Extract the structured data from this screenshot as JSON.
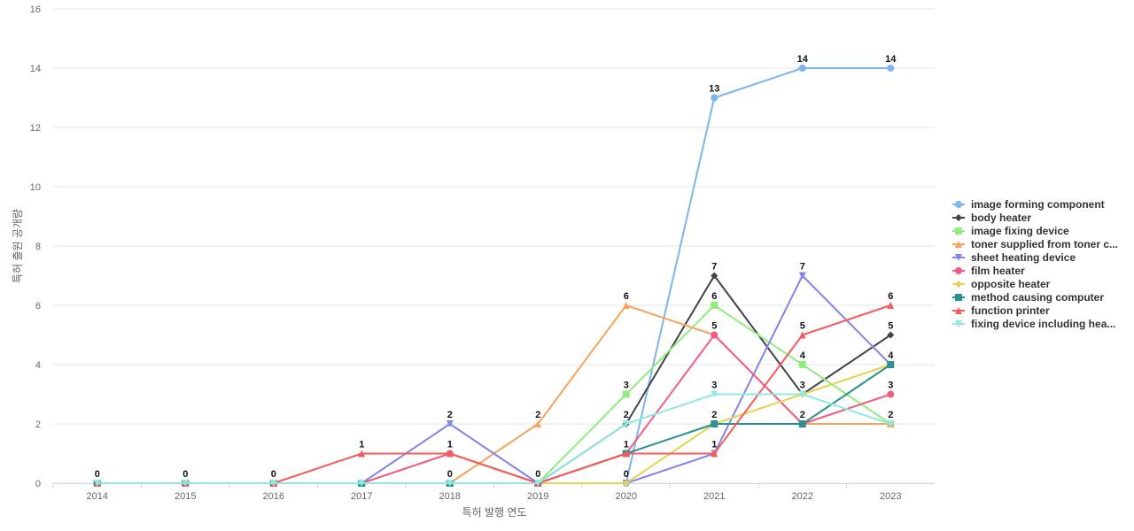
{
  "chart_data": {
    "type": "line",
    "title": "",
    "xlabel": "특허 발행 연도",
    "ylabel": "특허 출원 공개량",
    "x": [
      "2014",
      "2015",
      "2016",
      "2017",
      "2018",
      "2019",
      "2020",
      "2021",
      "2022",
      "2023"
    ],
    "yticks": [
      0,
      2,
      4,
      6,
      8,
      10,
      12,
      14,
      16
    ],
    "ylim": [
      0,
      16
    ],
    "grid": true,
    "legend_position": "right",
    "series": [
      {
        "name": "image forming component",
        "display_name": "image forming component",
        "color": "#7cb5ec",
        "marker": "circle",
        "values": [
          0,
          0,
          0,
          0,
          0,
          0,
          0,
          13,
          14,
          14
        ],
        "labels": [
          true,
          false,
          false,
          false,
          false,
          false,
          false,
          true,
          true,
          true
        ]
      },
      {
        "name": "body heater",
        "display_name": "body heater",
        "color": "#434348",
        "marker": "diamond",
        "values": [
          0,
          0,
          0,
          0,
          0,
          0,
          2,
          7,
          3,
          5
        ],
        "labels": [
          false,
          false,
          false,
          false,
          false,
          false,
          false,
          true,
          false,
          true
        ]
      },
      {
        "name": "image fixing device",
        "display_name": "image fixing device",
        "color": "#90ed7d",
        "marker": "square",
        "values": [
          0,
          0,
          0,
          0,
          0,
          0,
          3,
          6,
          4,
          2
        ],
        "labels": [
          false,
          false,
          false,
          false,
          false,
          false,
          true,
          true,
          true,
          false
        ]
      },
      {
        "name": "toner supplied from toner c...",
        "display_name": "toner supplied from toner c...",
        "color": "#f7a35c",
        "marker": "triangle",
        "values": [
          0,
          0,
          0,
          0,
          0,
          2,
          6,
          5,
          2,
          2
        ],
        "labels": [
          false,
          false,
          false,
          false,
          false,
          true,
          true,
          false,
          false,
          false
        ]
      },
      {
        "name": "sheet heating device",
        "display_name": "sheet heating device",
        "color": "#8085e9",
        "marker": "triangle-down",
        "values": [
          0,
          0,
          0,
          0,
          2,
          0,
          0,
          1,
          7,
          4
        ],
        "labels": [
          false,
          false,
          false,
          false,
          true,
          false,
          false,
          false,
          true,
          false
        ]
      },
      {
        "name": "film heater",
        "display_name": "film heater",
        "color": "#f15c80",
        "marker": "circle",
        "values": [
          0,
          0,
          0,
          0,
          1,
          0,
          1,
          5,
          2,
          3
        ],
        "labels": [
          false,
          false,
          false,
          false,
          true,
          false,
          false,
          true,
          false,
          true
        ]
      },
      {
        "name": "opposite heater",
        "display_name": "opposite heater",
        "color": "#e4d354",
        "marker": "diamond",
        "values": [
          0,
          0,
          0,
          0,
          0,
          0,
          0,
          2,
          3,
          4
        ],
        "labels": [
          false,
          false,
          false,
          false,
          false,
          false,
          true,
          false,
          false,
          false
        ]
      },
      {
        "name": "method causing computer",
        "display_name": "method causing computer",
        "color": "#2b908f",
        "marker": "square",
        "values": [
          0,
          0,
          0,
          0,
          0,
          0,
          1,
          2,
          2,
          4
        ],
        "labels": [
          false,
          false,
          false,
          false,
          true,
          false,
          false,
          true,
          true,
          true
        ]
      },
      {
        "name": "function printer",
        "display_name": "function printer",
        "color": "#f45b5b",
        "marker": "triangle",
        "values": [
          0,
          0,
          0,
          1,
          1,
          0,
          1,
          1,
          5,
          6
        ],
        "labels": [
          false,
          true,
          true,
          true,
          false,
          true,
          true,
          true,
          true,
          true
        ]
      },
      {
        "name": "fixing device including hea...",
        "display_name": "fixing device including hea...",
        "color": "#91e8e1",
        "marker": "triangle-down",
        "values": [
          0,
          0,
          0,
          0,
          0,
          0,
          2,
          3,
          3,
          2
        ],
        "labels": [
          false,
          false,
          false,
          false,
          false,
          false,
          true,
          true,
          true,
          true
        ]
      }
    ]
  }
}
